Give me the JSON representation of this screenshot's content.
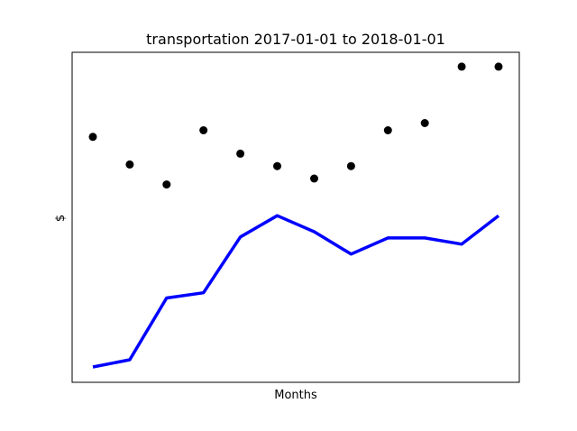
{
  "chart_data": {
    "type": "line",
    "title": "transportation 2017-01-01 to 2018-01-01",
    "xlabel": "Months",
    "ylabel": "$",
    "x_ticks_visible": false,
    "y_ticks_visible": false,
    "grid": false,
    "legend": "none",
    "ylim": [
      0,
      100
    ],
    "series": [
      {
        "style": "points",
        "color": "#000000",
        "values": [
          74.5,
          66.1,
          60.0,
          76.5,
          69.4,
          65.6,
          61.8,
          65.6,
          76.5,
          78.7,
          95.9,
          95.9
        ]
      },
      {
        "style": "line",
        "color": "#0000ff",
        "values": [
          4.4,
          6.6,
          25.4,
          27.0,
          44.0,
          50.5,
          45.6,
          38.8,
          43.7,
          43.7,
          41.8,
          50.5
        ]
      }
    ]
  }
}
